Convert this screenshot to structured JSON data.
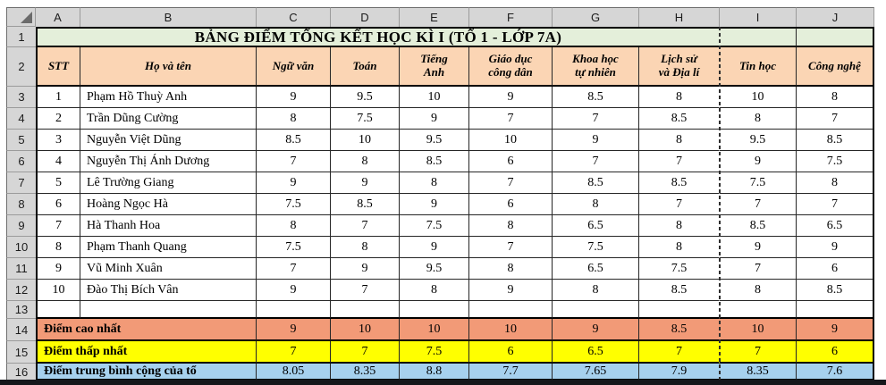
{
  "sheet": {
    "title": "BẢNG ĐIỂM TỔNG KẾT HỌC KÌ I (TỔ 1 - LỚP 7A)",
    "column_letters": [
      "A",
      "B",
      "C",
      "D",
      "E",
      "F",
      "G",
      "H",
      "I",
      "J"
    ],
    "row_numbers": [
      "1",
      "2",
      "3",
      "4",
      "5",
      "6",
      "7",
      "8",
      "9",
      "10",
      "11",
      "12",
      "13",
      "14",
      "15",
      "16"
    ],
    "headers": [
      "STT",
      "Họ và tên",
      "Ngữ văn",
      "Toán",
      "Tiếng\nAnh",
      "Giáo dục\ncông dân",
      "Khoa học\ntự nhiên",
      "Lịch sử\nvà Địa lí",
      "Tin học",
      "Công nghệ"
    ],
    "students": [
      {
        "stt": "1",
        "name": "Phạm Hồ Thuỳ Anh",
        "scores": [
          "9",
          "9.5",
          "10",
          "9",
          "8.5",
          "8",
          "10",
          "8"
        ]
      },
      {
        "stt": "2",
        "name": "Trần Dũng Cường",
        "scores": [
          "8",
          "7.5",
          "9",
          "7",
          "7",
          "8.5",
          "8",
          "7"
        ]
      },
      {
        "stt": "3",
        "name": "Nguyễn Việt Dũng",
        "scores": [
          "8.5",
          "10",
          "9.5",
          "10",
          "9",
          "8",
          "9.5",
          "8.5"
        ]
      },
      {
        "stt": "4",
        "name": "Nguyễn Thị Ánh Dương",
        "scores": [
          "7",
          "8",
          "8.5",
          "6",
          "7",
          "7",
          "9",
          "7.5"
        ]
      },
      {
        "stt": "5",
        "name": "Lê Trường Giang",
        "scores": [
          "9",
          "9",
          "8",
          "7",
          "8.5",
          "8.5",
          "7.5",
          "8"
        ]
      },
      {
        "stt": "6",
        "name": "Hoàng Ngọc Hà",
        "scores": [
          "7.5",
          "8.5",
          "9",
          "6",
          "8",
          "7",
          "7",
          "7"
        ]
      },
      {
        "stt": "7",
        "name": "Hà Thanh Hoa",
        "scores": [
          "8",
          "7",
          "7.5",
          "8",
          "6.5",
          "8",
          "8.5",
          "6.5"
        ]
      },
      {
        "stt": "8",
        "name": "Phạm Thanh Quang",
        "scores": [
          "7.5",
          "8",
          "9",
          "7",
          "7.5",
          "8",
          "9",
          "9"
        ]
      },
      {
        "stt": "9",
        "name": "Vũ Minh Xuân",
        "scores": [
          "7",
          "9",
          "9.5",
          "8",
          "6.5",
          "7.5",
          "7",
          "6"
        ]
      },
      {
        "stt": "10",
        "name": "Đào Thị Bích Vân",
        "scores": [
          "9",
          "7",
          "8",
          "9",
          "8",
          "8.5",
          "8",
          "8.5"
        ]
      }
    ],
    "summary": [
      {
        "label": "Điểm cao nhất",
        "values": [
          "9",
          "10",
          "10",
          "10",
          "9",
          "8.5",
          "10",
          "9"
        ],
        "bg": "#F29A77"
      },
      {
        "label": "Điểm thấp nhất",
        "values": [
          "7",
          "7",
          "7.5",
          "6",
          "6.5",
          "7",
          "7",
          "6"
        ],
        "bg": "#FFFF00"
      },
      {
        "label": "Điểm trung bình cộng của tổ",
        "values": [
          "8.05",
          "8.35",
          "8.8",
          "7.7",
          "7.65",
          "7.9",
          "8.35",
          "7.6"
        ],
        "bg": "#A6D1EE"
      }
    ],
    "colors": {
      "header_gray": "#D6D6D6",
      "title_green": "#E4EFDA",
      "subject_peach": "#FBD5B4",
      "max_salmon": "#F29A77",
      "min_yellow": "#FFFF00",
      "avg_blue": "#A6D1EE"
    }
  }
}
